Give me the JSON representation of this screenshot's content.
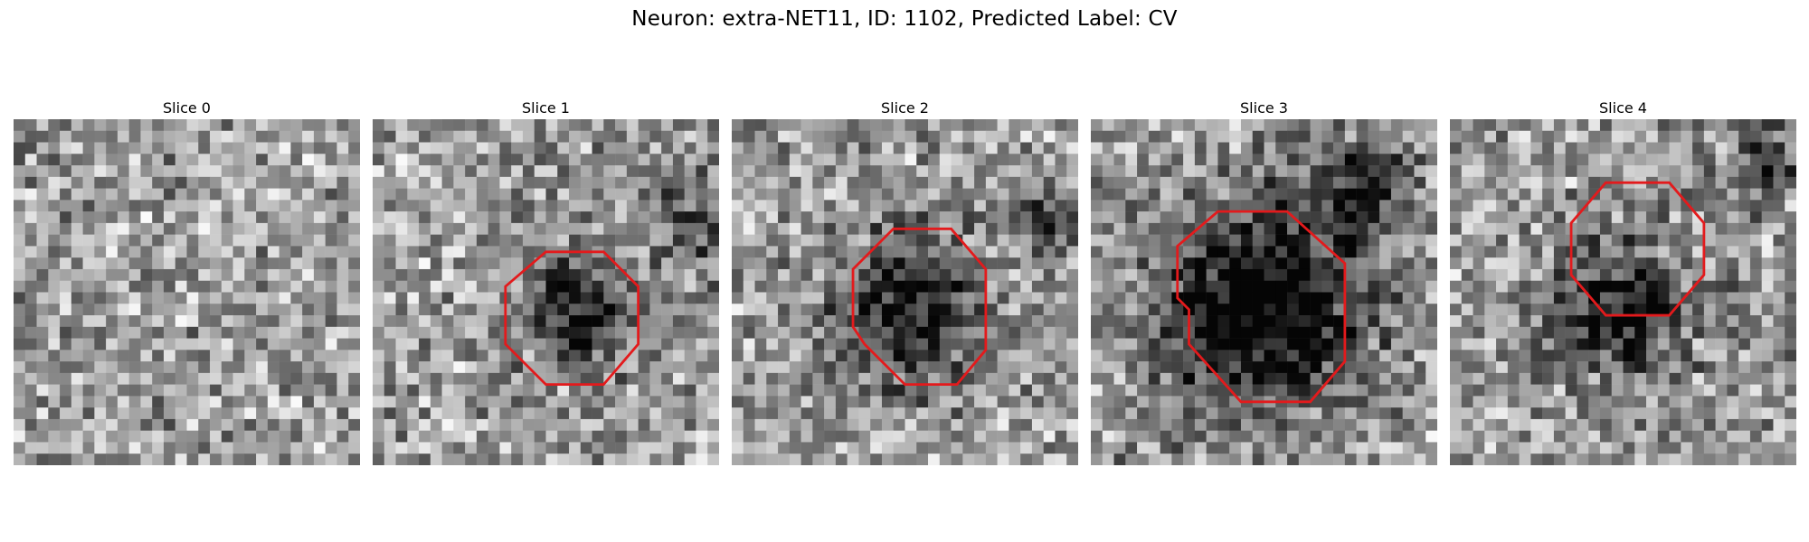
{
  "figure": {
    "title": "Neuron: extra-NET11, ID: 1102, Predicted Label: CV"
  },
  "slices": [
    {
      "title": "Slice 0",
      "seed": 11,
      "has_outline": false
    },
    {
      "title": "Slice 1",
      "seed": 23,
      "has_outline": true
    },
    {
      "title": "Slice 2",
      "seed": 37,
      "has_outline": true
    },
    {
      "title": "Slice 3",
      "seed": 51,
      "has_outline": true
    },
    {
      "title": "Slice 4",
      "seed": 67,
      "has_outline": true
    }
  ],
  "colors": {
    "outline": "#e31a1c",
    "background": "#ffffff"
  },
  "colormap": "gray"
}
